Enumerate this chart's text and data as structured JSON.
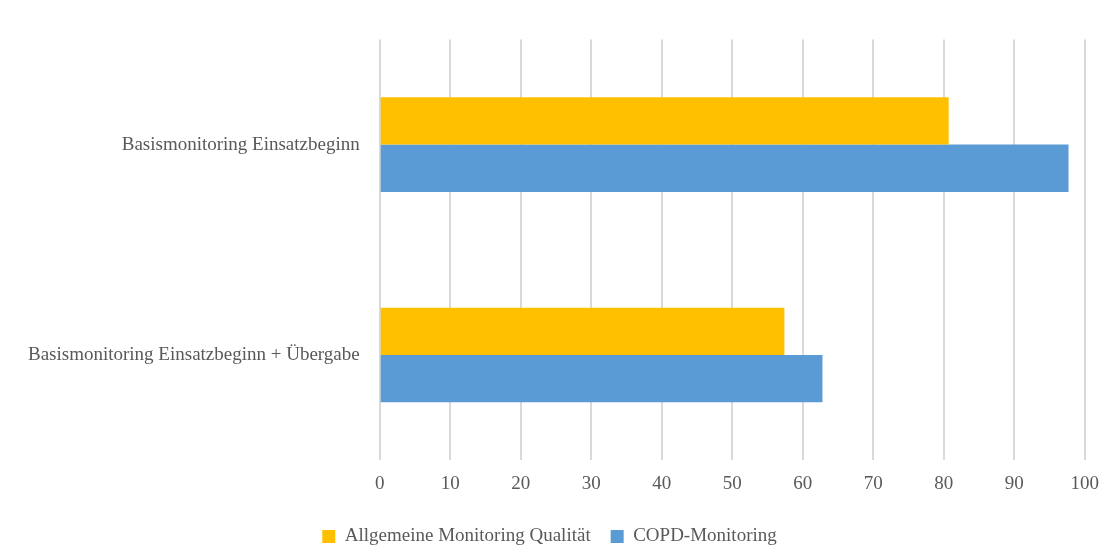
{
  "chart_data": {
    "type": "bar",
    "orientation": "horizontal",
    "categories": [
      "Basismonitoring Einsatzbeginn",
      "Basismonitoring Einsatzbeginn + Übergabe"
    ],
    "series": [
      {
        "name": "Allgemeine Monitoring Qualität",
        "color": "#ffc000",
        "values": [
          80.7,
          57.4
        ]
      },
      {
        "name": "COPD-Monitoring",
        "color": "#5b9bd5",
        "values": [
          97.7,
          62.8
        ]
      }
    ],
    "xlim": [
      0,
      100
    ],
    "xticks": [
      0,
      10,
      20,
      30,
      40,
      50,
      60,
      70,
      80,
      90,
      100
    ],
    "grid": "x",
    "legend": "bottom"
  }
}
